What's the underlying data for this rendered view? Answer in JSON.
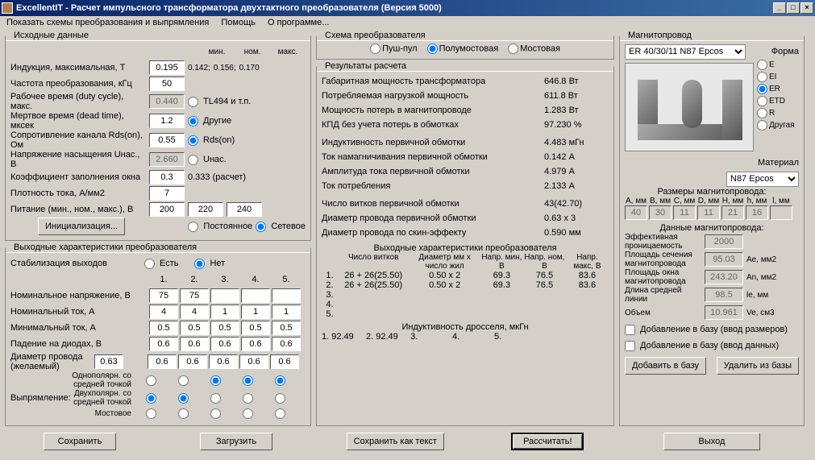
{
  "window": {
    "title": "ExcellentIT - Расчет импульсного трансформатора двухтактного преобразователя (Версия 5000)"
  },
  "menu": {
    "schemes": "Показать схемы преобразования и выпрямления",
    "help": "Помощь",
    "about": "О программе..."
  },
  "input": {
    "legend": "Исходные данные",
    "header_min": "мин.",
    "header_nom": "ном.",
    "header_max": "макс.",
    "induction_label": "Индукция, максимальная, Т",
    "induction_val": "0.195",
    "induction_min": "0.142;",
    "induction_nom": "0.156;",
    "induction_max": "0.170",
    "freq_label": "Частота преобразования, кГц",
    "freq_val": "50",
    "duty_label": "Рабочее время (duty cycle), макс.",
    "duty_val": "0.440",
    "dead_label": "Мертвое время (dead time), мксек",
    "dead_val": "1.2",
    "rds_label": "Сопротивление канала Rds(on), Ом",
    "rds_val": "0.55",
    "unas_label": "Напряжение насыщения Uнас., В",
    "unas_val": "2.660",
    "fill_label": "Коэффициент заполнения окна",
    "fill_val": "0.3",
    "fill_calc": "0.333 (расчет)",
    "j_label": "Плотность тока, А/мм2",
    "j_val": "7",
    "supply_label": "Питание (мин., ном., макс.), В",
    "supply_min": "200",
    "supply_nom": "220",
    "supply_max": "240",
    "init_btn": "Инициализация...",
    "tl494_label": "TL494 и т.п.",
    "other_label": "Другие",
    "rdson_label": "Rds(on)",
    "unas_radio_label": "Uнас.",
    "dc_label": "Постоянное",
    "ac_label": "Сетевое"
  },
  "output": {
    "legend": "Выходные характеристики преобразователя",
    "stab_label": "Стабилизация выходов",
    "yes": "Есть",
    "no": "Нет",
    "col1": "1.",
    "col2": "2.",
    "col3": "3.",
    "col4": "4.",
    "col5": "5.",
    "vnom_label": "Номинальное напряжение, В",
    "vnom": [
      "75",
      "75",
      "",
      "",
      ""
    ],
    "inom_label": "Номинальный ток, А",
    "inom": [
      "4",
      "4",
      "1",
      "1",
      "1"
    ],
    "imin_label": "Минимальный ток, А",
    "imin": [
      "0.5",
      "0.5",
      "0.5",
      "0.5",
      "0.5"
    ],
    "vdiode_label": "Падение на диодах, В",
    "vdiode": [
      "0.6",
      "0.6",
      "0.6",
      "0.6",
      "0.6"
    ],
    "dwire_label": "Диаметр провода (желаемый)",
    "dwire_first": "0.63",
    "dwire": [
      "0.6",
      "0.6",
      "0.6",
      "0.6",
      "0.6"
    ],
    "rect_label": "Выпрямление:",
    "rect1": "Однополярн. со средней точкой",
    "rect2": "Двухполярн. со средней точкой",
    "rect3": "Мостовое"
  },
  "scheme": {
    "legend": "Схема преобразователя",
    "pushpull": "Пуш-пул",
    "halfbridge": "Полумостовая",
    "bridge": "Мостовая"
  },
  "results": {
    "legend": "Результаты расчета",
    "gab_label": "Габаритная мощность трансформатора",
    "gab_val": "646.8 Вт",
    "load_label": "Потребляемая нагрузкой мощность",
    "load_val": "611.8 Вт",
    "loss_label": "Мощность потерь в магнитопроводе",
    "loss_val": "1.283 Вт",
    "eff_label": "КПД без учета потерь в обмотках",
    "eff_val": "97.230 %",
    "lprim_label": "Индуктивность первичной обмотки",
    "lprim_val": "4.483 мГн",
    "imag_label": "Ток намагничивания первичной обмотки",
    "imag_val": "0.142 А",
    "iamp_label": "Амплитуда тока первичной обмотки",
    "iamp_val": "4.979 А",
    "icons_label": "Ток потребления",
    "icons_val": "2.133 А",
    "nprim_label": "Число витков первичной обмотки",
    "nprim_val": "43(42.70)",
    "dprim_label": "Диаметр провода первичной обмотки",
    "dprim_val": "0.63 x 3",
    "dskin_label": "Диаметр провода по скин-эффекту",
    "dskin_val": "0.590 мм",
    "out_legend": "Выходные характеристики преобразователя",
    "h_turns": "Число витков",
    "h_wire": "Диаметр мм x число жил",
    "h_vmin": "Напр. мин, В",
    "h_vnom": "Напр. ном, В",
    "h_vmax": "Напр. макс, В",
    "rows": [
      {
        "n": "1.",
        "turns": "26 + 26(25.50)",
        "wire": "0.50 x 2",
        "vmin": "69.3",
        "vnom": "76.5",
        "vmax": "83.6"
      },
      {
        "n": "2.",
        "turns": "26 + 26(25.50)",
        "wire": "0.50 x 2",
        "vmin": "69.3",
        "vnom": "76.5",
        "vmax": "83.6"
      },
      {
        "n": "3.",
        "turns": "",
        "wire": "",
        "vmin": "",
        "vnom": "",
        "vmax": ""
      },
      {
        "n": "4.",
        "turns": "",
        "wire": "",
        "vmin": "",
        "vnom": "",
        "vmax": ""
      },
      {
        "n": "5.",
        "turns": "",
        "wire": "",
        "vmin": "",
        "vnom": "",
        "vmax": ""
      }
    ],
    "choke_label": "Индуктивность дросселя, мкГн",
    "choke_row": "1. 92.49     2. 92.49     3.              4.              5."
  },
  "core": {
    "legend": "Магнитопровод",
    "select": "ER 40/30/11 N87 Epcos",
    "shape_label": "Форма",
    "shapes": [
      "E",
      "EI",
      "ER",
      "ETD",
      "R",
      "Другая"
    ],
    "material_label": "Материал",
    "material": "N87 Epcos",
    "dims_label": "Размеры магнитопровода:",
    "dim_h": [
      "A, мм",
      "B, мм",
      "C, мм",
      "D, мм",
      "H, мм",
      "h, мм",
      "l, мм"
    ],
    "dim_v": [
      "40",
      "30",
      "11",
      "11",
      "21",
      "16",
      ""
    ],
    "data_label": "Данные магнитопровода:",
    "perm_label": "Эффективная проницаемость",
    "perm_val": "2000",
    "ae_label": "Площадь сечения магнитопровода",
    "ae_val": "95.03",
    "ae_unit": "Ae, мм2",
    "an_label": "Площадь окна магнитопровода",
    "an_val": "243.20",
    "an_unit": "An, мм2",
    "le_label": "Длина средней линии",
    "le_val": "98.5",
    "le_unit": "le, мм",
    "ve_label": "Объем",
    "ve_val": "10.961",
    "ve_unit": "Ve, см3",
    "cb1": "Добавление в базу (ввод размеров)",
    "cb2": "Добавление в базу (ввод данных)",
    "add_btn": "Добавить в базу",
    "del_btn": "Удалить из базы"
  },
  "buttons": {
    "save": "Сохранить",
    "load": "Загрузить",
    "savetext": "Сохранить как текст",
    "calc": "Рассчитать!",
    "exit": "Выход"
  }
}
